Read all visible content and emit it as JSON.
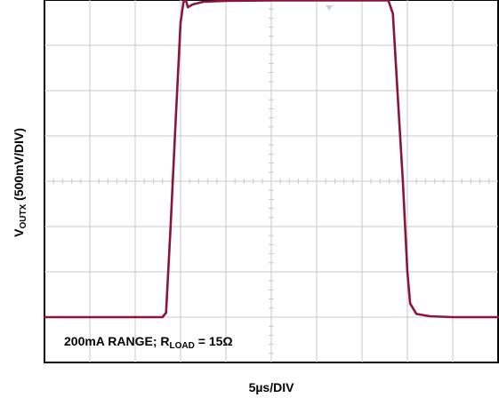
{
  "chart_data": {
    "type": "line",
    "xlabel": "5µs/DIV",
    "ylabel_main": "V",
    "ylabel_sub": "OUTX",
    "ylabel_rest": " (500mV/DIV)",
    "annotation_main": "200mA RANGE; R",
    "annotation_sub": "LOAD",
    "annotation_rest": " = 15Ω",
    "divisions": {
      "x": 10,
      "y": 8
    },
    "grid": true,
    "x_unit": "divisions",
    "y_unit": "divisions",
    "series": [
      {
        "color": "#8b1538",
        "points": [
          [
            0.0,
            1.0
          ],
          [
            2.6,
            1.0
          ],
          [
            2.68,
            1.1
          ],
          [
            2.78,
            3.0
          ],
          [
            2.9,
            5.5
          ],
          [
            3.0,
            7.5
          ],
          [
            3.06,
            7.93
          ],
          [
            3.1,
            8.06
          ],
          [
            3.16,
            7.84
          ],
          [
            3.26,
            7.9
          ],
          [
            3.5,
            7.96
          ],
          [
            4.0,
            7.98
          ],
          [
            5.0,
            7.99
          ],
          [
            6.0,
            7.99
          ],
          [
            7.0,
            7.99
          ],
          [
            7.58,
            7.99
          ],
          [
            7.68,
            7.7
          ],
          [
            7.78,
            6.0
          ],
          [
            7.9,
            4.0
          ],
          [
            8.0,
            2.0
          ],
          [
            8.06,
            1.3
          ],
          [
            8.2,
            1.07
          ],
          [
            8.5,
            1.02
          ],
          [
            9.0,
            1.0
          ],
          [
            10.0,
            1.0
          ]
        ]
      }
    ]
  }
}
